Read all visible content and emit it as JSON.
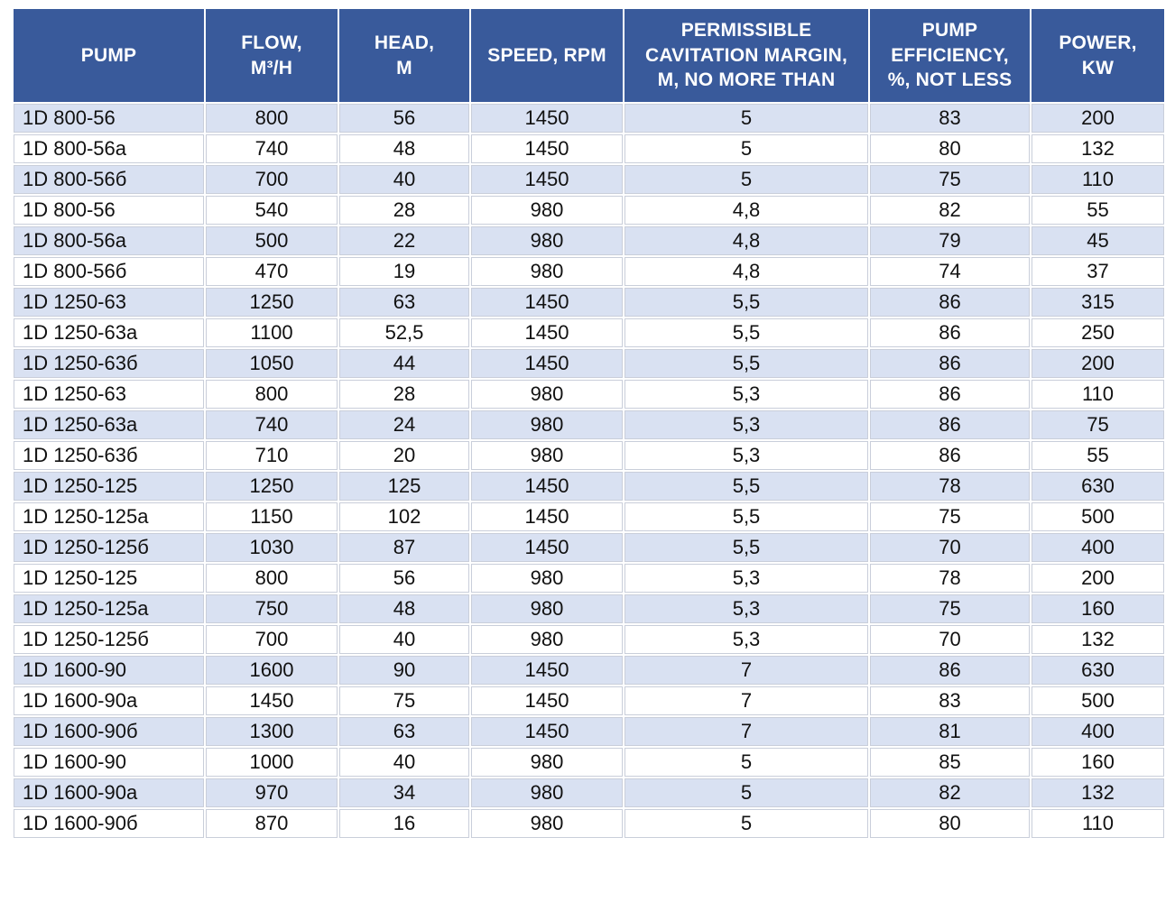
{
  "colors": {
    "header_bg": "#395A9B",
    "header_text": "#FFFFFF",
    "row_alt_bg": "#D9E1F2",
    "row_bg": "#FFFFFF",
    "cell_border": "#C9CEDA",
    "body_text": "#111111"
  },
  "table": {
    "fields": [
      "pump",
      "flow",
      "head",
      "speed",
      "cavitation",
      "efficiency",
      "power"
    ],
    "columns": [
      {
        "label": "PUMP"
      },
      {
        "label": "FLOW,\nM³/H"
      },
      {
        "label": "HEAD,\nM"
      },
      {
        "label": "SPEED, RPM"
      },
      {
        "label": "PERMISSIBLE\nCAVITATION MARGIN,\nM, NO MORE THAN"
      },
      {
        "label": "PUMP\nEFFICIENCY,\n%, NOT LESS"
      },
      {
        "label": "POWER,\nKW"
      }
    ],
    "rows": [
      {
        "pump": "1D 800-56",
        "flow": "800",
        "head": "56",
        "speed": "1450",
        "cavitation": "5",
        "efficiency": "83",
        "power": "200"
      },
      {
        "pump": "1D 800-56a",
        "flow": "740",
        "head": "48",
        "speed": "1450",
        "cavitation": "5",
        "efficiency": "80",
        "power": "132"
      },
      {
        "pump": "1D 800-56б",
        "flow": "700",
        "head": "40",
        "speed": "1450",
        "cavitation": "5",
        "efficiency": "75",
        "power": "110"
      },
      {
        "pump": "1D 800-56",
        "flow": "540",
        "head": "28",
        "speed": "980",
        "cavitation": "4,8",
        "efficiency": "82",
        "power": "55"
      },
      {
        "pump": "1D 800-56a",
        "flow": "500",
        "head": "22",
        "speed": "980",
        "cavitation": "4,8",
        "efficiency": "79",
        "power": "45"
      },
      {
        "pump": "1D 800-56б",
        "flow": "470",
        "head": "19",
        "speed": "980",
        "cavitation": "4,8",
        "efficiency": "74",
        "power": "37"
      },
      {
        "pump": "1D 1250-63",
        "flow": "1250",
        "head": "63",
        "speed": "1450",
        "cavitation": "5,5",
        "efficiency": "86",
        "power": "315"
      },
      {
        "pump": "1D 1250-63a",
        "flow": "1100",
        "head": "52,5",
        "speed": "1450",
        "cavitation": "5,5",
        "efficiency": "86",
        "power": "250"
      },
      {
        "pump": "1D 1250-63б",
        "flow": "1050",
        "head": "44",
        "speed": "1450",
        "cavitation": "5,5",
        "efficiency": "86",
        "power": "200"
      },
      {
        "pump": "1D 1250-63",
        "flow": "800",
        "head": "28",
        "speed": "980",
        "cavitation": "5,3",
        "efficiency": "86",
        "power": "110"
      },
      {
        "pump": "1D 1250-63a",
        "flow": "740",
        "head": "24",
        "speed": "980",
        "cavitation": "5,3",
        "efficiency": "86",
        "power": "75"
      },
      {
        "pump": "1D 1250-63б",
        "flow": "710",
        "head": "20",
        "speed": "980",
        "cavitation": "5,3",
        "efficiency": "86",
        "power": "55"
      },
      {
        "pump": "1D 1250-125",
        "flow": "1250",
        "head": "125",
        "speed": "1450",
        "cavitation": "5,5",
        "efficiency": "78",
        "power": "630"
      },
      {
        "pump": "1D 1250-125a",
        "flow": "1150",
        "head": "102",
        "speed": "1450",
        "cavitation": "5,5",
        "efficiency": "75",
        "power": "500"
      },
      {
        "pump": "1D 1250-125б",
        "flow": "1030",
        "head": "87",
        "speed": "1450",
        "cavitation": "5,5",
        "efficiency": "70",
        "power": "400"
      },
      {
        "pump": "1D 1250-125",
        "flow": "800",
        "head": "56",
        "speed": "980",
        "cavitation": "5,3",
        "efficiency": "78",
        "power": "200"
      },
      {
        "pump": "1D 1250-125a",
        "flow": "750",
        "head": "48",
        "speed": "980",
        "cavitation": "5,3",
        "efficiency": "75",
        "power": "160"
      },
      {
        "pump": "1D 1250-125б",
        "flow": "700",
        "head": "40",
        "speed": "980",
        "cavitation": "5,3",
        "efficiency": "70",
        "power": "132"
      },
      {
        "pump": "1D 1600-90",
        "flow": "1600",
        "head": "90",
        "speed": "1450",
        "cavitation": "7",
        "efficiency": "86",
        "power": "630"
      },
      {
        "pump": "1D 1600-90a",
        "flow": "1450",
        "head": "75",
        "speed": "1450",
        "cavitation": "7",
        "efficiency": "83",
        "power": "500"
      },
      {
        "pump": "1D 1600-90б",
        "flow": "1300",
        "head": "63",
        "speed": "1450",
        "cavitation": "7",
        "efficiency": "81",
        "power": "400"
      },
      {
        "pump": "1D 1600-90",
        "flow": "1000",
        "head": "40",
        "speed": "980",
        "cavitation": "5",
        "efficiency": "85",
        "power": "160"
      },
      {
        "pump": "1D 1600-90a",
        "flow": "970",
        "head": "34",
        "speed": "980",
        "cavitation": "5",
        "efficiency": "82",
        "power": "132"
      },
      {
        "pump": "1D 1600-90б",
        "flow": "870",
        "head": "16",
        "speed": "980",
        "cavitation": "5",
        "efficiency": "80",
        "power": "110"
      }
    ]
  }
}
